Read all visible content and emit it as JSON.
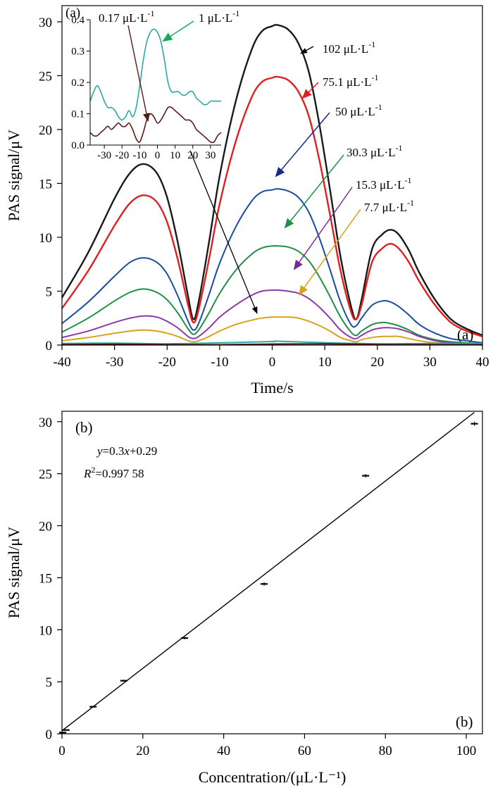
{
  "chart_data": [
    {
      "type": "line",
      "panel_label": "(a)",
      "xlabel": "Time/s",
      "ylabel": "PAS signal/μV",
      "xlim": [
        -40,
        40
      ],
      "ylim": [
        0,
        31.5
      ],
      "xticks": [
        "-40",
        "-30",
        "-20",
        "-10",
        "0",
        "10",
        "20",
        "30",
        "40"
      ],
      "yticks": [
        "0",
        "5",
        "10",
        "15",
        "20",
        "25",
        "30"
      ],
      "series": [
        {
          "name": "102 μL·L⁻¹",
          "label_main": "102 μL·L",
          "color": "#1a1a1a",
          "peak": 29.7,
          "x": [
            -40,
            -35,
            -30,
            -27,
            -24.5,
            -22,
            -20,
            -18,
            -16,
            -15,
            -14,
            -12,
            -10,
            -7,
            -4,
            -2,
            0,
            1,
            3,
            5,
            7,
            9,
            11,
            13,
            15,
            16,
            17,
            19,
            21,
            22.5,
            24,
            26,
            28,
            31,
            34,
            37,
            40
          ],
          "y": [
            4.4,
            8.6,
            13.6,
            16.0,
            16.8,
            16.0,
            13.7,
            9.6,
            4.5,
            2.4,
            4.0,
            9.6,
            15.7,
            22.5,
            27.3,
            29.1,
            29.6,
            29.7,
            29.3,
            28.0,
            25.3,
            20.4,
            14.4,
            8.2,
            3.6,
            2.4,
            4.2,
            8.9,
            10.3,
            10.7,
            10.3,
            8.8,
            6.7,
            4.2,
            2.4,
            1.5,
            0.9
          ]
        },
        {
          "name": "75.1 μL·L⁻¹",
          "label_main": "75.1 μL·L",
          "color": "#e02020",
          "peak": 24.9,
          "x": [
            -40,
            -35,
            -30,
            -27,
            -24.5,
            -22,
            -20,
            -18,
            -16,
            -15,
            -14,
            -12,
            -10,
            -7,
            -4,
            -2,
            0,
            1,
            3,
            5,
            7,
            9,
            11,
            13,
            15,
            16,
            17,
            19,
            21,
            22.5,
            24,
            26,
            28,
            31,
            34,
            37,
            40
          ],
          "y": [
            3.4,
            6.9,
            11.1,
            13.2,
            13.9,
            13.3,
            11.4,
            8.0,
            3.7,
            2.1,
            3.3,
            8.0,
            13.1,
            18.8,
            22.9,
            24.4,
            24.8,
            24.9,
            24.6,
            23.5,
            21.2,
            17.1,
            12.1,
            6.9,
            3.1,
            2.4,
            3.7,
            7.7,
            9.0,
            9.4,
            9.0,
            7.7,
            5.9,
            3.7,
            2.1,
            1.3,
            0.8
          ]
        },
        {
          "name": "50 μL·L⁻¹",
          "label_main": "50 μL·L",
          "color": "#1a4ba0",
          "peak": 14.5,
          "x": [
            -40,
            -35,
            -30,
            -27,
            -24.5,
            -22,
            -20,
            -18,
            -16,
            -15,
            -14,
            -12,
            -10,
            -7,
            -4,
            -2,
            0,
            1,
            3,
            5,
            7,
            9,
            11,
            13,
            15,
            16,
            17,
            19,
            21,
            22.5,
            24,
            26,
            28,
            31,
            34,
            37,
            40
          ],
          "y": [
            2.0,
            4.0,
            6.4,
            7.7,
            8.1,
            7.7,
            6.6,
            4.6,
            2.2,
            1.4,
            2.0,
            4.7,
            7.6,
            10.9,
            13.3,
            14.2,
            14.4,
            14.5,
            14.3,
            13.7,
            12.3,
            9.9,
            7.0,
            4.0,
            1.9,
            1.8,
            2.5,
            3.7,
            4.1,
            4.0,
            3.6,
            2.8,
            1.9,
            1.1,
            0.6,
            0.4,
            0.2
          ]
        },
        {
          "name": "30.3 μL·L⁻¹",
          "label_main": "30.3 μL·L",
          "color": "#1e9044",
          "peak": 9.2,
          "x": [
            -40,
            -35,
            -30,
            -27,
            -24.5,
            -22,
            -20,
            -18,
            -16,
            -15,
            -14,
            -12,
            -10,
            -7,
            -4,
            -2,
            0,
            1,
            3,
            5,
            7,
            9,
            11,
            13,
            15,
            16,
            17,
            19,
            21,
            22.5,
            24,
            26,
            28,
            31,
            34,
            37,
            40
          ],
          "y": [
            1.2,
            2.5,
            4.1,
            4.9,
            5.2,
            4.9,
            4.2,
            3.0,
            1.5,
            1.0,
            1.4,
            3.0,
            4.8,
            6.9,
            8.4,
            9.0,
            9.2,
            9.2,
            9.1,
            8.7,
            7.8,
            6.3,
            4.5,
            2.6,
            1.2,
            0.9,
            1.3,
            1.9,
            2.1,
            2.0,
            1.8,
            1.4,
            0.9,
            0.5,
            0.3,
            0.2,
            0.1
          ]
        },
        {
          "name": "15.3 μL·L⁻¹",
          "label_main": "15.3 μL·L",
          "color": "#8a3aa8",
          "peak": 5.1,
          "x": [
            -40,
            -35,
            -30,
            -27,
            -24.5,
            -22,
            -20,
            -18,
            -16,
            -15,
            -14,
            -12,
            -10,
            -7,
            -4,
            -2,
            0,
            1,
            3,
            5,
            7,
            9,
            11,
            13,
            15,
            16,
            17,
            19,
            21,
            22.5,
            24,
            26,
            28,
            31,
            34,
            37,
            40
          ],
          "y": [
            0.7,
            1.3,
            2.1,
            2.5,
            2.7,
            2.6,
            2.2,
            1.6,
            0.8,
            0.6,
            0.8,
            1.6,
            2.6,
            3.7,
            4.6,
            5.0,
            5.1,
            5.1,
            5.0,
            4.8,
            4.3,
            3.5,
            2.5,
            1.4,
            0.7,
            0.6,
            0.9,
            1.4,
            1.6,
            1.6,
            1.5,
            1.2,
            0.8,
            0.4,
            0.2,
            0.1,
            0.1
          ]
        },
        {
          "name": "7.7 μL·L⁻¹",
          "label_main": "7.7 μL·L",
          "color": "#d9a11c",
          "peak": 2.6,
          "x": [
            -40,
            -35,
            -30,
            -27,
            -24.5,
            -22,
            -20,
            -18,
            -16,
            -15,
            -14,
            -12,
            -10,
            -7,
            -4,
            -2,
            0,
            1,
            3,
            5,
            7,
            9,
            11,
            13,
            15,
            16,
            17,
            19,
            21,
            22.5,
            24,
            26,
            28,
            31,
            34,
            37,
            40
          ],
          "y": [
            0.4,
            0.7,
            1.1,
            1.3,
            1.4,
            1.3,
            1.1,
            0.8,
            0.4,
            0.3,
            0.4,
            0.8,
            1.3,
            1.9,
            2.3,
            2.5,
            2.6,
            2.6,
            2.6,
            2.5,
            2.2,
            1.8,
            1.3,
            0.7,
            0.4,
            0.3,
            0.5,
            0.7,
            0.8,
            0.8,
            0.8,
            0.6,
            0.4,
            0.2,
            0.1,
            0.1,
            0.0
          ]
        },
        {
          "name": "1 μL·L⁻¹",
          "label_main": "1 μL·L",
          "color": "#2aa8a8",
          "peak": 0.36,
          "x": [
            -40,
            -30,
            -20,
            -10,
            0,
            1,
            10,
            20,
            30,
            40
          ],
          "y": [
            0.15,
            0.18,
            0.12,
            0.2,
            0.33,
            0.36,
            0.22,
            0.12,
            0.15,
            0.15
          ]
        },
        {
          "name": "0.17 μL·L⁻¹",
          "label_main": "0.17 μL·L",
          "color": "#5a1a1a",
          "peak": 0.12,
          "x": [
            -40,
            -30,
            -20,
            -10,
            0,
            10,
            20,
            30,
            40
          ],
          "y": [
            0.05,
            0.08,
            0.05,
            0.03,
            0.1,
            0.12,
            0.06,
            0.04,
            0.03
          ]
        }
      ],
      "unit_exponent": "-1",
      "inset": {
        "type": "line",
        "panel_label": "(a)",
        "xlim": [
          -38,
          36
        ],
        "ylim": [
          0,
          0.4
        ],
        "xticks": [
          "-30",
          "-20",
          "-10",
          "0",
          "10",
          "20",
          "30"
        ],
        "yticks": [
          "0.0",
          "0.1",
          "0.2",
          "0.3",
          "0.4"
        ],
        "series": [
          {
            "name": "1 μL·L⁻¹",
            "color": "#2aa8a8",
            "x": [
              -38,
              -36,
              -34,
              -32,
              -30,
              -28,
              -26,
              -24,
              -22,
              -20,
              -18,
              -16,
              -14,
              -12,
              -10,
              -8,
              -6,
              -4,
              -2,
              0,
              2,
              4,
              6,
              8,
              10,
              12,
              14,
              16,
              18,
              20,
              22,
              24,
              26,
              28,
              30,
              32,
              34,
              36
            ],
            "y": [
              0.14,
              0.17,
              0.19,
              0.17,
              0.14,
              0.12,
              0.12,
              0.11,
              0.09,
              0.08,
              0.09,
              0.11,
              0.09,
              0.12,
              0.19,
              0.27,
              0.33,
              0.36,
              0.37,
              0.36,
              0.33,
              0.27,
              0.2,
              0.17,
              0.17,
              0.17,
              0.16,
              0.16,
              0.17,
              0.17,
              0.15,
              0.14,
              0.13,
              0.13,
              0.14,
              0.14,
              0.14,
              0.14
            ]
          },
          {
            "name": "0.17 μL·L⁻¹",
            "color": "#5a1a1a",
            "x": [
              -38,
              -36,
              -34,
              -32,
              -30,
              -28,
              -26,
              -24,
              -22,
              -20,
              -18,
              -16,
              -14,
              -12,
              -10,
              -8,
              -6,
              -4,
              -2,
              0,
              2,
              4,
              6,
              8,
              10,
              12,
              14,
              16,
              18,
              20,
              22,
              24,
              26,
              28,
              30,
              32,
              34,
              36
            ],
            "y": [
              0.04,
              0.03,
              0.03,
              0.04,
              0.05,
              0.06,
              0.05,
              0.06,
              0.07,
              0.06,
              0.06,
              0.07,
              0.05,
              0.02,
              0.01,
              0.04,
              0.08,
              0.1,
              0.09,
              0.07,
              0.08,
              0.1,
              0.12,
              0.12,
              0.11,
              0.1,
              0.09,
              0.08,
              0.08,
              0.07,
              0.05,
              0.04,
              0.03,
              0.02,
              0.01,
              0.01,
              0.03,
              0.04
            ]
          }
        ]
      },
      "corner_label": "(a)"
    },
    {
      "type": "scatter",
      "panel_label": "(b)",
      "corner_label": "(b)",
      "xlabel": "Concentration/(μL·L⁻¹)",
      "ylabel": "PAS signal/μV",
      "xlim": [
        0,
        104
      ],
      "ylim": [
        0,
        31
      ],
      "xticks": [
        "0",
        "20",
        "40",
        "60",
        "80",
        "100"
      ],
      "yticks": [
        "0",
        "5",
        "10",
        "15",
        "20",
        "25",
        "30"
      ],
      "points": {
        "x": [
          0.17,
          1,
          7.7,
          15.3,
          30.3,
          50,
          75.1,
          102
        ],
        "y": [
          0.12,
          0.36,
          2.6,
          5.1,
          9.2,
          14.4,
          24.8,
          29.8
        ],
        "err": [
          0.05,
          0.05,
          0.08,
          0.1,
          0.12,
          0.18,
          0.18,
          0.2
        ]
      },
      "fit": {
        "slope": 0.3,
        "intercept": 0.29,
        "x": [
          0,
          102
        ]
      },
      "equation_y": "y",
      "equation_rest": "=0.3",
      "equation_x": "x",
      "equation_tail": "+0.29",
      "r2_base": "R",
      "r2_sup": "2",
      "r2_value": "=0.997 58"
    }
  ]
}
